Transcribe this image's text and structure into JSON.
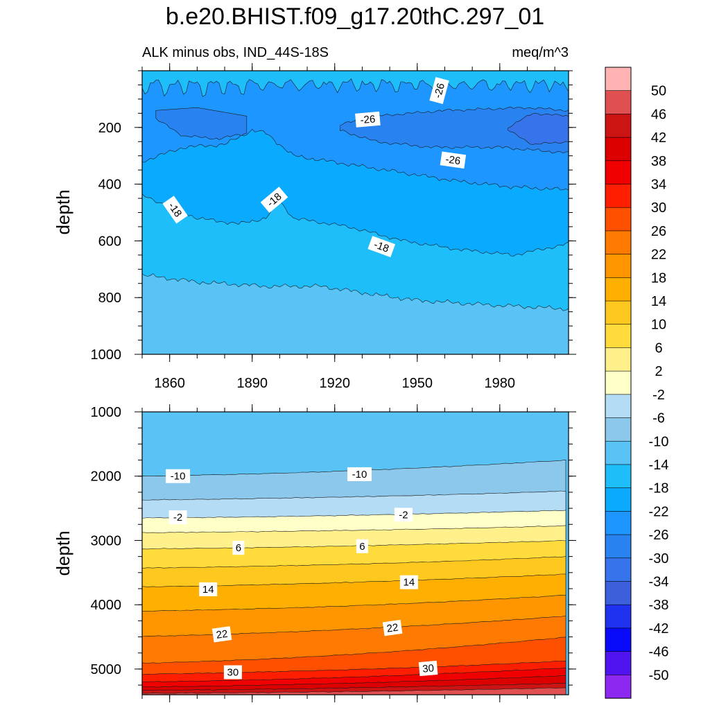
{
  "title": "b.e20.BHIST.f09_g17.20thC.297_01",
  "panel_left_label": "ALK minus obs, IND_44S-18S",
  "panel_right_label": "meq/m^3",
  "colorbar": {
    "levels": [
      -50,
      -46,
      -42,
      -38,
      -34,
      -30,
      -26,
      -22,
      -18,
      -14,
      -10,
      -6,
      -2,
      2,
      6,
      10,
      14,
      18,
      22,
      26,
      30,
      34,
      38,
      42,
      46,
      50
    ],
    "labels": [
      "50",
      "46",
      "42",
      "38",
      "34",
      "30",
      "26",
      "22",
      "18",
      "14",
      "10",
      "6",
      "2",
      "-2",
      "-6",
      "-10",
      "-14",
      "-18",
      "-22",
      "-26",
      "-30",
      "-34",
      "-38",
      "-42",
      "-46",
      "-50"
    ],
    "colors_top_to_bottom": [
      "#FFB3B3",
      "#E05050",
      "#CC1414",
      "#DD0000",
      "#F00000",
      "#FF1E00",
      "#FF5000",
      "#FF7A00",
      "#FF9600",
      "#FFAF00",
      "#FFC81E",
      "#FFDC3C",
      "#FFF08C",
      "#FFFFC8",
      "#B4DCF5",
      "#8CC8EB",
      "#5AC3F5",
      "#1EBEFA",
      "#0AAAFF",
      "#1E96FF",
      "#2882F0",
      "#3773EB",
      "#3C5FDC",
      "#1E32F0",
      "#0A0AFA",
      "#5014F0",
      "#8C28F0"
    ]
  },
  "chart_data": [
    {
      "type": "contour",
      "panel": "upper",
      "xlabel": "",
      "ylabel": "depth",
      "xlim": [
        1850,
        2005
      ],
      "ylim": [
        0,
        1000
      ],
      "y_inverted": true,
      "x_ticks": [
        1860,
        1890,
        1920,
        1950,
        1980
      ],
      "x_tick_labels": [
        "1860",
        "1890",
        "1920",
        "1950",
        "1980"
      ],
      "y_ticks": [
        200,
        400,
        600,
        800,
        1000
      ],
      "y_tick_labels": [
        "200",
        "400",
        "600",
        "800",
        "1000"
      ],
      "contour_labels": [
        {
          "text": "-26",
          "year": 1958,
          "depth": 70,
          "angle": -75
        },
        {
          "text": "-26",
          "year": 1932,
          "depth": 172,
          "angle": -5
        },
        {
          "text": "-26",
          "year": 1963,
          "depth": 315,
          "angle": 8
        },
        {
          "text": "-18",
          "year": 1862,
          "depth": 490,
          "angle": 55
        },
        {
          "text": "-18",
          "year": 1898,
          "depth": 455,
          "angle": -40
        },
        {
          "text": "-18",
          "year": 1937,
          "depth": 620,
          "angle": 20
        }
      ]
    },
    {
      "type": "contour",
      "panel": "lower",
      "xlabel": "",
      "ylabel": "depth",
      "xlim": [
        1850,
        2005
      ],
      "ylim": [
        1000,
        5400
      ],
      "y_inverted": true,
      "y_ticks": [
        1000,
        2000,
        3000,
        4000,
        5000
      ],
      "y_tick_labels": [
        "1000",
        "2000",
        "3000",
        "4000",
        "5000"
      ],
      "contour_labels": [
        {
          "text": "-10",
          "year": 1863,
          "depth": 2000,
          "angle": 0
        },
        {
          "text": "-10",
          "year": 1929,
          "depth": 1970,
          "angle": 0
        },
        {
          "text": "-2",
          "year": 1863,
          "depth": 2640,
          "angle": 0
        },
        {
          "text": "-2",
          "year": 1945,
          "depth": 2600,
          "angle": 0
        },
        {
          "text": "6",
          "year": 1885,
          "depth": 3115,
          "angle": 0
        },
        {
          "text": "6",
          "year": 1930,
          "depth": 3090,
          "angle": 0
        },
        {
          "text": "14",
          "year": 1874,
          "depth": 3760,
          "angle": 0
        },
        {
          "text": "14",
          "year": 1947,
          "depth": 3650,
          "angle": 0
        },
        {
          "text": "22",
          "year": 1879,
          "depth": 4460,
          "angle": -8
        },
        {
          "text": "22",
          "year": 1941,
          "depth": 4360,
          "angle": -8
        },
        {
          "text": "30",
          "year": 1883,
          "depth": 5050,
          "angle": 0
        },
        {
          "text": "30",
          "year": 1954,
          "depth": 4990,
          "angle": -5
        }
      ]
    }
  ]
}
